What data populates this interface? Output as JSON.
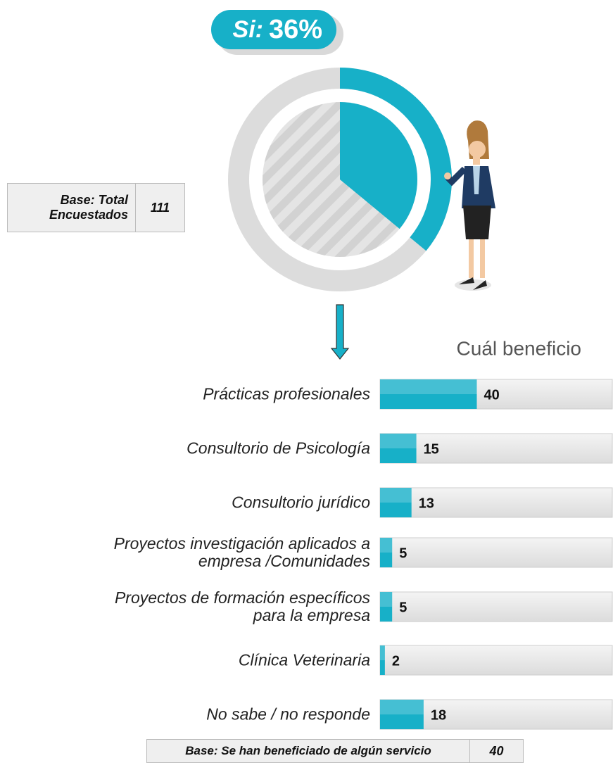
{
  "chart_data": [
    {
      "type": "donut",
      "categories": [
        "Si:"
      ],
      "values": [
        36
      ],
      "value_labels": [
        "36%"
      ],
      "color": "#17b0c8"
    },
    {
      "type": "bar",
      "title": "Cuál beneficio",
      "categories": [
        "Prácticas profesionales",
        "Consultorio de Psicología",
        "Consultorio jurídico",
        "Proyectos investigación aplicados a\nempresa /Comunidades",
        "Proyectos de formación específicos\npara la empresa",
        "Clínica Veterinaria",
        "No sabe / no responde"
      ],
      "values": [
        40,
        15,
        13,
        5,
        5,
        2,
        18
      ],
      "xlim": [
        0,
        96
      ],
      "color": "#17b0c8"
    }
  ],
  "base_total": {
    "label": "Base: Total\nEncuestados",
    "value": 111
  },
  "base_beneficiados": {
    "label": "Base: Se han beneficiado de algún servicio",
    "value": 40
  }
}
